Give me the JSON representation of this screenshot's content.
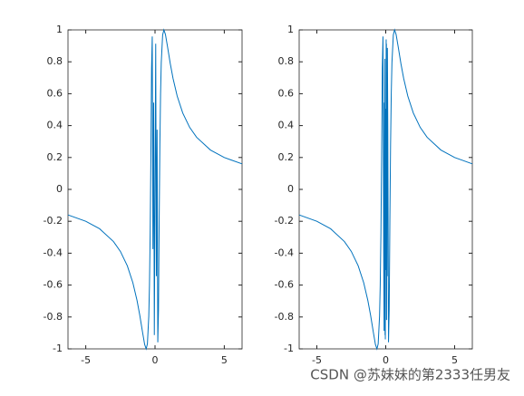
{
  "chart_data": [
    {
      "type": "line",
      "x": [
        -6.28,
        -5,
        -4,
        -3,
        -2.5,
        -2,
        -1.6,
        -1.3,
        -1.1,
        -0.9,
        -0.75,
        -0.64,
        -0.55,
        -0.45,
        -0.4,
        -0.35,
        -0.3,
        -0.25,
        -0.2,
        -0.15,
        -0.1,
        -0.05,
        0.05,
        0.1,
        0.15,
        0.2,
        0.25,
        0.3,
        0.35,
        0.4,
        0.45,
        0.55,
        0.64,
        0.75,
        0.9,
        1.1,
        1.3,
        1.6,
        2,
        2.5,
        3,
        4,
        5,
        6.28
      ],
      "series": [
        {
          "color": "#0072bd",
          "values": [
            -0.16,
            -0.2,
            -0.247,
            -0.327,
            -0.389,
            -0.479,
            -0.585,
            -0.696,
            -0.789,
            -0.896,
            -0.972,
            -1,
            -0.969,
            -0.795,
            -0.598,
            -0.28,
            0.19,
            0.757,
            0.959,
            -0.374,
            0.544,
            -0.913,
            0.913,
            -0.544,
            0.374,
            -0.959,
            -0.757,
            -0.19,
            0.28,
            0.598,
            0.795,
            0.969,
            1,
            0.972,
            0.896,
            0.789,
            0.696,
            0.585,
            0.479,
            0.389,
            0.327,
            0.247,
            0.2,
            0.16
          ]
        }
      ],
      "xlim": [
        -6.2832,
        6.2832
      ],
      "xticks": [
        -5,
        0,
        5
      ],
      "ylim": [
        -1,
        1
      ],
      "yticks": [
        -1,
        -0.8,
        -0.6,
        -0.4,
        -0.2,
        0,
        0.2,
        0.4,
        0.6,
        0.8,
        1
      ]
    },
    {
      "type": "line",
      "x": [
        -6.28,
        -5,
        -4,
        -3,
        -2.5,
        -2,
        -1.6,
        -1.3,
        -1.1,
        -0.9,
        -0.75,
        -0.64,
        -0.55,
        -0.45,
        -0.4,
        -0.35,
        -0.3,
        -0.25,
        -0.2,
        -0.15,
        -0.12,
        -0.1,
        -0.08,
        -0.06,
        -0.05,
        -0.04,
        -0.03,
        -0.02,
        -0.01,
        0.01,
        0.02,
        0.03,
        0.04,
        0.05,
        0.06,
        0.08,
        0.1,
        0.12,
        0.15,
        0.2,
        0.25,
        0.3,
        0.35,
        0.4,
        0.45,
        0.55,
        0.64,
        0.75,
        0.9,
        1.1,
        1.3,
        1.6,
        2,
        2.5,
        3,
        4,
        5,
        6.28
      ],
      "series": [
        {
          "color": "#0072bd",
          "values": [
            -0.16,
            -0.2,
            -0.247,
            -0.327,
            -0.389,
            -0.479,
            -0.585,
            -0.696,
            -0.789,
            -0.896,
            -0.972,
            -1,
            -0.969,
            -0.795,
            -0.598,
            -0.28,
            0.19,
            0.757,
            0.959,
            -0.374,
            -0.887,
            0.544,
            0.066,
            0.819,
            -0.913,
            0.132,
            -0.94,
            0.262,
            0.506,
            -0.506,
            -0.262,
            0.94,
            -0.132,
            0.913,
            -0.819,
            -0.066,
            -0.544,
            0.887,
            0.374,
            -0.959,
            -0.757,
            -0.19,
            0.28,
            0.598,
            0.795,
            0.969,
            1,
            0.972,
            0.896,
            0.789,
            0.696,
            0.585,
            0.479,
            0.389,
            0.327,
            0.247,
            0.2,
            0.16
          ]
        }
      ],
      "xlim": [
        -6.2832,
        6.2832
      ],
      "xticks": [
        -5,
        0,
        5
      ],
      "ylim": [
        -1,
        1
      ],
      "yticks": [
        -1,
        -0.8,
        -0.6,
        -0.4,
        -0.2,
        0,
        0.2,
        0.4,
        0.6,
        0.8,
        1
      ]
    }
  ],
  "watermark": "CSDN @苏妹妹的第2333任男友"
}
